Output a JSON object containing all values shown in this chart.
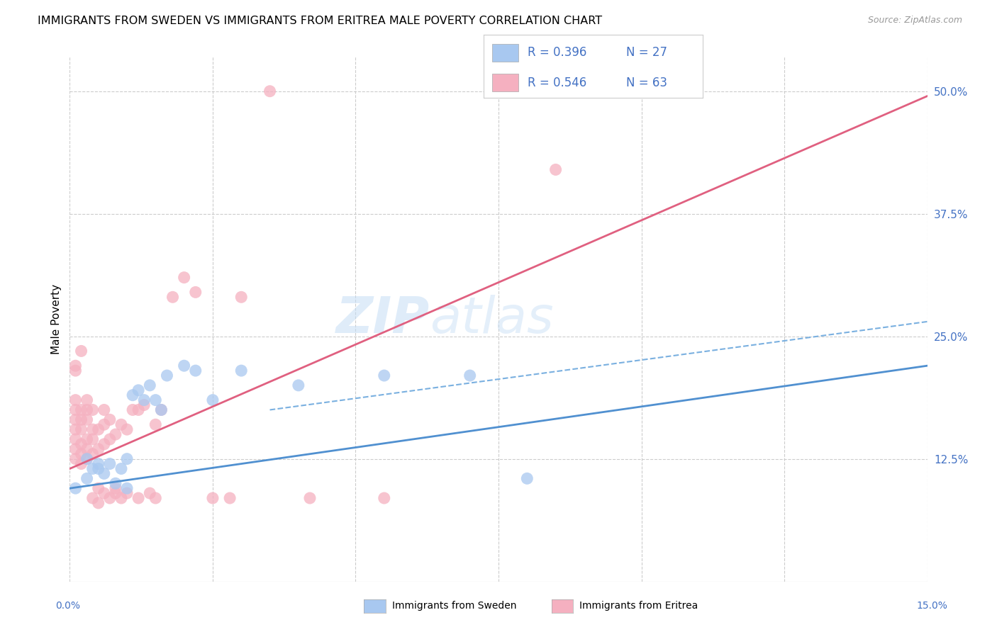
{
  "title": "IMMIGRANTS FROM SWEDEN VS IMMIGRANTS FROM ERITREA MALE POVERTY CORRELATION CHART",
  "source": "Source: ZipAtlas.com",
  "ylabel": "Male Poverty",
  "right_yticks": [
    "50.0%",
    "37.5%",
    "25.0%",
    "12.5%"
  ],
  "right_ytick_vals": [
    0.5,
    0.375,
    0.25,
    0.125
  ],
  "xlim": [
    0.0,
    0.15
  ],
  "ylim": [
    0.0,
    0.535
  ],
  "watermark_zip": "ZIP",
  "watermark_atlas": "atlas",
  "sweden_color": "#a8c8f0",
  "eritrea_color": "#f5b0c0",
  "sweden_line_color": "#5090d0",
  "eritrea_line_color": "#e06080",
  "sweden_dashed_color": "#7ab0e0",
  "sweden_points": [
    [
      0.001,
      0.095
    ],
    [
      0.003,
      0.105
    ],
    [
      0.004,
      0.115
    ],
    [
      0.005,
      0.115
    ],
    [
      0.006,
      0.11
    ],
    [
      0.007,
      0.12
    ],
    [
      0.008,
      0.1
    ],
    [
      0.009,
      0.115
    ],
    [
      0.01,
      0.125
    ],
    [
      0.011,
      0.19
    ],
    [
      0.012,
      0.195
    ],
    [
      0.013,
      0.185
    ],
    [
      0.014,
      0.2
    ],
    [
      0.015,
      0.185
    ],
    [
      0.016,
      0.175
    ],
    [
      0.017,
      0.21
    ],
    [
      0.02,
      0.22
    ],
    [
      0.022,
      0.215
    ],
    [
      0.025,
      0.185
    ],
    [
      0.03,
      0.215
    ],
    [
      0.04,
      0.2
    ],
    [
      0.055,
      0.21
    ],
    [
      0.07,
      0.21
    ],
    [
      0.003,
      0.125
    ],
    [
      0.005,
      0.12
    ],
    [
      0.01,
      0.095
    ],
    [
      0.08,
      0.105
    ]
  ],
  "eritrea_points": [
    [
      0.001,
      0.125
    ],
    [
      0.001,
      0.135
    ],
    [
      0.001,
      0.145
    ],
    [
      0.001,
      0.155
    ],
    [
      0.001,
      0.165
    ],
    [
      0.001,
      0.175
    ],
    [
      0.001,
      0.185
    ],
    [
      0.002,
      0.12
    ],
    [
      0.002,
      0.13
    ],
    [
      0.002,
      0.14
    ],
    [
      0.002,
      0.155
    ],
    [
      0.002,
      0.165
    ],
    [
      0.002,
      0.175
    ],
    [
      0.003,
      0.125
    ],
    [
      0.003,
      0.135
    ],
    [
      0.003,
      0.145
    ],
    [
      0.003,
      0.165
    ],
    [
      0.003,
      0.175
    ],
    [
      0.003,
      0.185
    ],
    [
      0.004,
      0.13
    ],
    [
      0.004,
      0.145
    ],
    [
      0.004,
      0.155
    ],
    [
      0.004,
      0.175
    ],
    [
      0.005,
      0.135
    ],
    [
      0.005,
      0.155
    ],
    [
      0.005,
      0.095
    ],
    [
      0.006,
      0.14
    ],
    [
      0.006,
      0.16
    ],
    [
      0.006,
      0.175
    ],
    [
      0.006,
      0.09
    ],
    [
      0.007,
      0.145
    ],
    [
      0.007,
      0.165
    ],
    [
      0.007,
      0.085
    ],
    [
      0.008,
      0.15
    ],
    [
      0.008,
      0.09
    ],
    [
      0.009,
      0.16
    ],
    [
      0.009,
      0.085
    ],
    [
      0.01,
      0.155
    ],
    [
      0.01,
      0.09
    ],
    [
      0.011,
      0.175
    ],
    [
      0.012,
      0.175
    ],
    [
      0.012,
      0.085
    ],
    [
      0.013,
      0.18
    ],
    [
      0.014,
      0.09
    ],
    [
      0.015,
      0.16
    ],
    [
      0.015,
      0.085
    ],
    [
      0.016,
      0.175
    ],
    [
      0.018,
      0.29
    ],
    [
      0.02,
      0.31
    ],
    [
      0.022,
      0.295
    ],
    [
      0.025,
      0.085
    ],
    [
      0.028,
      0.085
    ],
    [
      0.03,
      0.29
    ],
    [
      0.035,
      0.5
    ],
    [
      0.055,
      0.085
    ],
    [
      0.001,
      0.215
    ],
    [
      0.001,
      0.22
    ],
    [
      0.002,
      0.235
    ],
    [
      0.004,
      0.085
    ],
    [
      0.005,
      0.08
    ],
    [
      0.008,
      0.095
    ],
    [
      0.085,
      0.42
    ],
    [
      0.042,
      0.085
    ]
  ],
  "sweden_trendline": [
    [
      0.0,
      0.095
    ],
    [
      0.15,
      0.22
    ]
  ],
  "eritrea_trendline": [
    [
      0.0,
      0.115
    ],
    [
      0.15,
      0.495
    ]
  ],
  "sweden_dashed_line": [
    [
      0.035,
      0.175
    ],
    [
      0.15,
      0.265
    ]
  ],
  "xtick_positions": [
    0.0,
    0.025,
    0.05,
    0.075,
    0.1,
    0.125,
    0.15
  ],
  "grid_ytick_vals": [
    0.125,
    0.25,
    0.375,
    0.5
  ]
}
